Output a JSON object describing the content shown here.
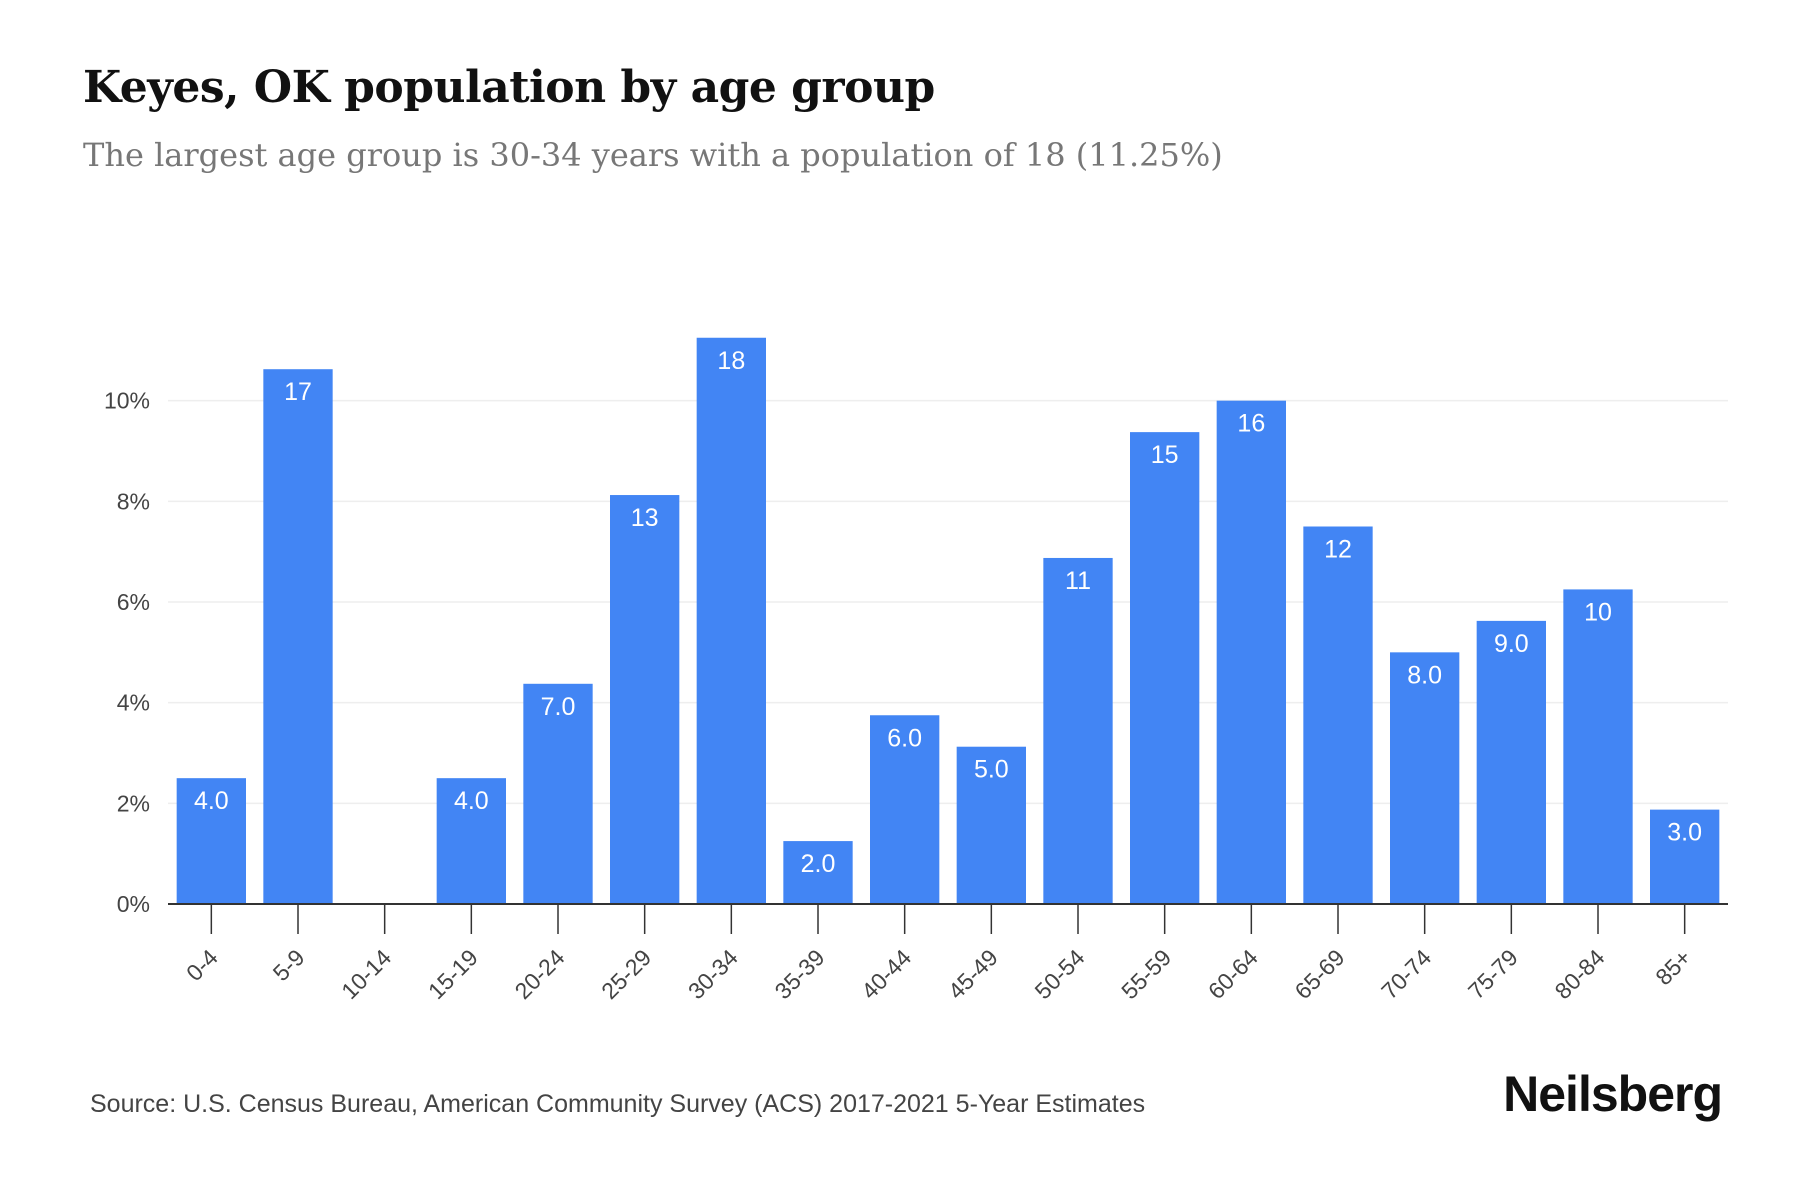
{
  "header": {
    "title": "Keyes, OK population by age group",
    "subtitle": "The largest age group is 30-34 years with a population of 18 (11.25%)"
  },
  "footer": {
    "source": "Source: U.S. Census Bureau, American Community Survey (ACS) 2017-2021 5-Year Estimates",
    "brand": "Neilsberg"
  },
  "colors": {
    "bar": "#4285f4",
    "grid": "#eeeeee",
    "axis": "#333333"
  },
  "chart_data": {
    "type": "bar",
    "categories": [
      "0-4",
      "5-9",
      "10-14",
      "15-19",
      "20-24",
      "25-29",
      "30-34",
      "35-39",
      "40-44",
      "45-49",
      "50-54",
      "55-59",
      "60-64",
      "65-69",
      "70-74",
      "75-79",
      "80-84",
      "85+"
    ],
    "values": [
      2.5,
      10.625,
      0,
      2.5,
      4.375,
      8.125,
      11.25,
      1.25,
      3.75,
      3.125,
      6.875,
      9.375,
      10.0,
      7.5,
      5.0,
      5.625,
      6.25,
      1.875
    ],
    "data_labels": [
      "4.0",
      "17",
      "",
      "4.0",
      "7.0",
      "13",
      "18",
      "2.0",
      "6.0",
      "5.0",
      "11",
      "15",
      "16",
      "12",
      "8.0",
      "9.0",
      "10",
      "3.0"
    ],
    "y_ticks": [
      0,
      2,
      4,
      6,
      8,
      10
    ],
    "y_tick_labels": [
      "0%",
      "2%",
      "4%",
      "6%",
      "8%",
      "10%"
    ],
    "ylim": [
      0,
      12
    ],
    "grid": true,
    "xlabel": "",
    "ylabel": ""
  }
}
